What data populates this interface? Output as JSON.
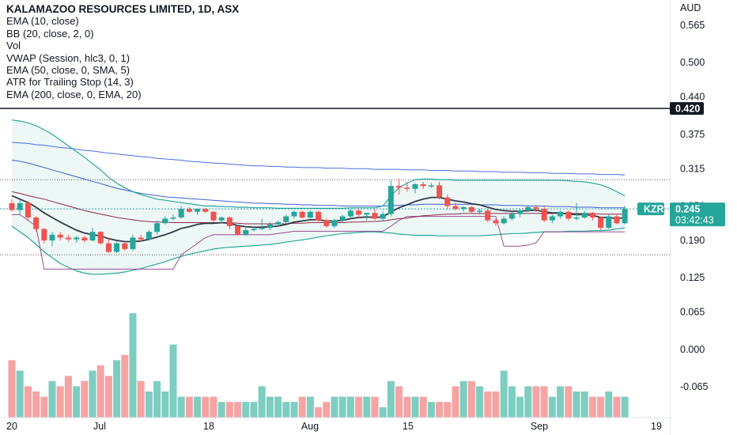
{
  "symbol": {
    "title": "KALAMAZOO RESOURCES LIMITED, 1D, ASX",
    "ticker": "KZR",
    "last_price": "0.245",
    "countdown": "03:42:43",
    "currency": "AUD"
  },
  "indicators": [
    "EMA (10, close)",
    "BB (20, close, 2, 0)",
    "Vol",
    "VWAP (Session, hlc3, 0, 1)",
    "EMA (50, close, 0, SMA, 5)",
    "ATR for Trailing Stop (14, 3)",
    "EMA (200, close, 0, EMA, 20)"
  ],
  "horizontal_line": {
    "price": "0.420",
    "color": "#131722"
  },
  "colors": {
    "up": "#26a69a",
    "down": "#ef5350",
    "bb_band": "#26a69a",
    "bb_fill": "#e6f4f2",
    "ema10": "#363a45",
    "ema50": "#8b2845",
    "ema200": "#3c5fd0",
    "ema200_b": "#4a6fe0",
    "atr_stop": "#9c4d8a",
    "vol_up": "#7dcdc0",
    "vol_down": "#f5a3a3",
    "price_badge": "#26a69a"
  },
  "chart_data": {
    "type": "candlestick",
    "price_axis_ticks": [
      "0.565",
      "0.500",
      "0.440",
      "0.375",
      "0.315",
      "0.250",
      "0.190",
      "0.125",
      "0.065",
      "0.000",
      "-0.065"
    ],
    "x_axis_labels": [
      "20",
      "Jul",
      "18",
      "Aug",
      "15",
      "Sep",
      "19"
    ],
    "candles": [
      {
        "o": 0.255,
        "h": 0.262,
        "l": 0.24,
        "c": 0.243
      },
      {
        "o": 0.243,
        "h": 0.26,
        "l": 0.235,
        "c": 0.255
      },
      {
        "o": 0.255,
        "h": 0.258,
        "l": 0.225,
        "c": 0.23
      },
      {
        "o": 0.23,
        "h": 0.232,
        "l": 0.205,
        "c": 0.21
      },
      {
        "o": 0.21,
        "h": 0.212,
        "l": 0.185,
        "c": 0.19
      },
      {
        "o": 0.19,
        "h": 0.205,
        "l": 0.18,
        "c": 0.2
      },
      {
        "o": 0.2,
        "h": 0.205,
        "l": 0.19,
        "c": 0.195
      },
      {
        "o": 0.195,
        "h": 0.2,
        "l": 0.188,
        "c": 0.192
      },
      {
        "o": 0.192,
        "h": 0.198,
        "l": 0.186,
        "c": 0.195
      },
      {
        "o": 0.195,
        "h": 0.198,
        "l": 0.186,
        "c": 0.19
      },
      {
        "o": 0.19,
        "h": 0.212,
        "l": 0.188,
        "c": 0.205
      },
      {
        "o": 0.205,
        "h": 0.206,
        "l": 0.183,
        "c": 0.185
      },
      {
        "o": 0.185,
        "h": 0.195,
        "l": 0.168,
        "c": 0.17
      },
      {
        "o": 0.17,
        "h": 0.188,
        "l": 0.168,
        "c": 0.185
      },
      {
        "o": 0.185,
        "h": 0.186,
        "l": 0.172,
        "c": 0.175
      },
      {
        "o": 0.175,
        "h": 0.2,
        "l": 0.172,
        "c": 0.195
      },
      {
        "o": 0.195,
        "h": 0.2,
        "l": 0.188,
        "c": 0.192
      },
      {
        "o": 0.192,
        "h": 0.208,
        "l": 0.19,
        "c": 0.205
      },
      {
        "o": 0.205,
        "h": 0.225,
        "l": 0.2,
        "c": 0.22
      },
      {
        "o": 0.22,
        "h": 0.232,
        "l": 0.218,
        "c": 0.228
      },
      {
        "o": 0.228,
        "h": 0.235,
        "l": 0.225,
        "c": 0.23
      },
      {
        "o": 0.23,
        "h": 0.25,
        "l": 0.228,
        "c": 0.245
      },
      {
        "o": 0.245,
        "h": 0.248,
        "l": 0.238,
        "c": 0.24
      },
      {
        "o": 0.24,
        "h": 0.246,
        "l": 0.235,
        "c": 0.245
      },
      {
        "o": 0.245,
        "h": 0.246,
        "l": 0.238,
        "c": 0.24
      },
      {
        "o": 0.24,
        "h": 0.241,
        "l": 0.222,
        "c": 0.225
      },
      {
        "o": 0.225,
        "h": 0.232,
        "l": 0.22,
        "c": 0.23
      },
      {
        "o": 0.23,
        "h": 0.232,
        "l": 0.21,
        "c": 0.215
      },
      {
        "o": 0.215,
        "h": 0.217,
        "l": 0.198,
        "c": 0.2
      },
      {
        "o": 0.2,
        "h": 0.212,
        "l": 0.198,
        "c": 0.208
      },
      {
        "o": 0.208,
        "h": 0.215,
        "l": 0.205,
        "c": 0.21
      },
      {
        "o": 0.21,
        "h": 0.228,
        "l": 0.208,
        "c": 0.212
      },
      {
        "o": 0.212,
        "h": 0.222,
        "l": 0.208,
        "c": 0.218
      },
      {
        "o": 0.218,
        "h": 0.225,
        "l": 0.215,
        "c": 0.222
      },
      {
        "o": 0.222,
        "h": 0.235,
        "l": 0.22,
        "c": 0.232
      },
      {
        "o": 0.232,
        "h": 0.242,
        "l": 0.228,
        "c": 0.24
      },
      {
        "o": 0.24,
        "h": 0.242,
        "l": 0.228,
        "c": 0.23
      },
      {
        "o": 0.23,
        "h": 0.242,
        "l": 0.228,
        "c": 0.24
      },
      {
        "o": 0.24,
        "h": 0.242,
        "l": 0.22,
        "c": 0.225
      },
      {
        "o": 0.225,
        "h": 0.228,
        "l": 0.212,
        "c": 0.215
      },
      {
        "o": 0.215,
        "h": 0.228,
        "l": 0.212,
        "c": 0.225
      },
      {
        "o": 0.225,
        "h": 0.235,
        "l": 0.222,
        "c": 0.232
      },
      {
        "o": 0.232,
        "h": 0.245,
        "l": 0.228,
        "c": 0.242
      },
      {
        "o": 0.242,
        "h": 0.245,
        "l": 0.23,
        "c": 0.235
      },
      {
        "o": 0.235,
        "h": 0.238,
        "l": 0.225,
        "c": 0.238
      },
      {
        "o": 0.238,
        "h": 0.245,
        "l": 0.225,
        "c": 0.228
      },
      {
        "o": 0.228,
        "h": 0.24,
        "l": 0.225,
        "c": 0.236
      },
      {
        "o": 0.236,
        "h": 0.295,
        "l": 0.232,
        "c": 0.285
      },
      {
        "o": 0.285,
        "h": 0.298,
        "l": 0.27,
        "c": 0.282
      },
      {
        "o": 0.282,
        "h": 0.292,
        "l": 0.275,
        "c": 0.28
      },
      {
        "o": 0.28,
        "h": 0.29,
        "l": 0.272,
        "c": 0.288
      },
      {
        "o": 0.288,
        "h": 0.292,
        "l": 0.28,
        "c": 0.285
      },
      {
        "o": 0.285,
        "h": 0.29,
        "l": 0.282,
        "c": 0.286
      },
      {
        "o": 0.286,
        "h": 0.292,
        "l": 0.262,
        "c": 0.265
      },
      {
        "o": 0.265,
        "h": 0.27,
        "l": 0.245,
        "c": 0.25
      },
      {
        "o": 0.25,
        "h": 0.256,
        "l": 0.242,
        "c": 0.245
      },
      {
        "o": 0.245,
        "h": 0.25,
        "l": 0.24,
        "c": 0.248
      },
      {
        "o": 0.248,
        "h": 0.25,
        "l": 0.238,
        "c": 0.24
      },
      {
        "o": 0.24,
        "h": 0.245,
        "l": 0.235,
        "c": 0.242
      },
      {
        "o": 0.242,
        "h": 0.245,
        "l": 0.222,
        "c": 0.225
      },
      {
        "o": 0.225,
        "h": 0.228,
        "l": 0.215,
        "c": 0.22
      },
      {
        "o": 0.22,
        "h": 0.232,
        "l": 0.218,
        "c": 0.228
      },
      {
        "o": 0.228,
        "h": 0.24,
        "l": 0.225,
        "c": 0.236
      },
      {
        "o": 0.236,
        "h": 0.245,
        "l": 0.23,
        "c": 0.242
      },
      {
        "o": 0.242,
        "h": 0.252,
        "l": 0.24,
        "c": 0.248
      },
      {
        "o": 0.248,
        "h": 0.252,
        "l": 0.24,
        "c": 0.245
      },
      {
        "o": 0.245,
        "h": 0.25,
        "l": 0.222,
        "c": 0.225
      },
      {
        "o": 0.225,
        "h": 0.235,
        "l": 0.22,
        "c": 0.232
      },
      {
        "o": 0.232,
        "h": 0.242,
        "l": 0.228,
        "c": 0.24
      },
      {
        "o": 0.24,
        "h": 0.242,
        "l": 0.225,
        "c": 0.228
      },
      {
        "o": 0.228,
        "h": 0.255,
        "l": 0.225,
        "c": 0.23
      },
      {
        "o": 0.23,
        "h": 0.242,
        "l": 0.228,
        "c": 0.238
      },
      {
        "o": 0.238,
        "h": 0.24,
        "l": 0.225,
        "c": 0.23
      },
      {
        "o": 0.23,
        "h": 0.232,
        "l": 0.208,
        "c": 0.212
      },
      {
        "o": 0.212,
        "h": 0.235,
        "l": 0.21,
        "c": 0.232
      },
      {
        "o": 0.232,
        "h": 0.235,
        "l": 0.218,
        "c": 0.22
      },
      {
        "o": 0.22,
        "h": 0.25,
        "l": 0.218,
        "c": 0.245
      }
    ],
    "ema10": [
      0.268,
      0.262,
      0.256,
      0.248,
      0.238,
      0.23,
      0.222,
      0.215,
      0.208,
      0.203,
      0.2,
      0.198,
      0.193,
      0.19,
      0.188,
      0.188,
      0.189,
      0.192,
      0.196,
      0.2,
      0.205,
      0.211,
      0.214,
      0.218,
      0.22,
      0.22,
      0.221,
      0.22,
      0.216,
      0.214,
      0.213,
      0.213,
      0.214,
      0.215,
      0.218,
      0.222,
      0.224,
      0.226,
      0.226,
      0.224,
      0.224,
      0.225,
      0.228,
      0.23,
      0.231,
      0.23,
      0.231,
      0.24,
      0.247,
      0.252,
      0.258,
      0.262,
      0.265,
      0.265,
      0.262,
      0.259,
      0.257,
      0.254,
      0.252,
      0.248,
      0.244,
      0.242,
      0.241,
      0.241,
      0.242,
      0.243,
      0.24,
      0.238,
      0.238,
      0.236,
      0.235,
      0.235,
      0.234,
      0.23,
      0.23,
      0.228,
      0.23
    ],
    "ema50": [
      0.275,
      0.272,
      0.268,
      0.265,
      0.262,
      0.258,
      0.254,
      0.25,
      0.246,
      0.242,
      0.239,
      0.236,
      0.233,
      0.23,
      0.228,
      0.226,
      0.224,
      0.223,
      0.222,
      0.222,
      0.221,
      0.221,
      0.221,
      0.221,
      0.221,
      0.221,
      0.221,
      0.221,
      0.22,
      0.219,
      0.219,
      0.219,
      0.219,
      0.219,
      0.219,
      0.22,
      0.22,
      0.221,
      0.221,
      0.221,
      0.221,
      0.221,
      0.222,
      0.222,
      0.223,
      0.223,
      0.224,
      0.226,
      0.228,
      0.229,
      0.231,
      0.233,
      0.234,
      0.235,
      0.236,
      0.236,
      0.237,
      0.237,
      0.237,
      0.237,
      0.237,
      0.237,
      0.237,
      0.237,
      0.237,
      0.237,
      0.237,
      0.237,
      0.237,
      0.237,
      0.237,
      0.237,
      0.237,
      0.236,
      0.236,
      0.236,
      0.236
    ],
    "ema200_a": [
      0.33,
      0.328,
      0.325,
      0.321,
      0.317,
      0.313,
      0.309,
      0.305,
      0.301,
      0.297,
      0.293,
      0.289,
      0.285,
      0.281,
      0.278,
      0.275,
      0.272,
      0.27,
      0.268,
      0.266,
      0.265,
      0.264,
      0.263,
      0.262,
      0.261,
      0.26,
      0.259,
      0.258,
      0.257,
      0.256,
      0.255,
      0.255,
      0.254,
      0.254,
      0.253,
      0.253,
      0.252,
      0.252,
      0.251,
      0.251,
      0.251,
      0.25,
      0.25,
      0.25,
      0.25,
      0.25,
      0.25,
      0.251,
      0.251,
      0.252,
      0.252,
      0.253,
      0.253,
      0.253,
      0.253,
      0.253,
      0.253,
      0.253,
      0.252,
      0.252,
      0.252,
      0.251,
      0.251,
      0.251,
      0.25,
      0.25,
      0.25,
      0.249,
      0.249,
      0.249,
      0.248,
      0.248,
      0.248,
      0.247,
      0.247,
      0.247,
      0.247
    ],
    "ema200_b": [
      0.361,
      0.36,
      0.359,
      0.357,
      0.356,
      0.354,
      0.352,
      0.351,
      0.349,
      0.347,
      0.346,
      0.344,
      0.342,
      0.341,
      0.339,
      0.338,
      0.336,
      0.335,
      0.333,
      0.332,
      0.331,
      0.33,
      0.328,
      0.327,
      0.326,
      0.325,
      0.324,
      0.323,
      0.322,
      0.321,
      0.32,
      0.32,
      0.319,
      0.319,
      0.318,
      0.318,
      0.317,
      0.317,
      0.317,
      0.316,
      0.316,
      0.316,
      0.315,
      0.315,
      0.315,
      0.314,
      0.314,
      0.314,
      0.314,
      0.313,
      0.313,
      0.313,
      0.312,
      0.312,
      0.312,
      0.311,
      0.311,
      0.311,
      0.31,
      0.31,
      0.31,
      0.309,
      0.309,
      0.309,
      0.308,
      0.308,
      0.308,
      0.307,
      0.307,
      0.307,
      0.306,
      0.306,
      0.306,
      0.305,
      0.305,
      0.305,
      0.304
    ],
    "bb_upper": [
      0.4,
      0.398,
      0.395,
      0.39,
      0.383,
      0.375,
      0.365,
      0.355,
      0.345,
      0.335,
      0.324,
      0.313,
      0.3,
      0.29,
      0.282,
      0.275,
      0.27,
      0.266,
      0.262,
      0.26,
      0.258,
      0.256,
      0.254,
      0.252,
      0.25,
      0.25,
      0.249,
      0.249,
      0.248,
      0.248,
      0.247,
      0.247,
      0.247,
      0.246,
      0.246,
      0.246,
      0.246,
      0.246,
      0.246,
      0.246,
      0.246,
      0.246,
      0.247,
      0.247,
      0.247,
      0.247,
      0.25,
      0.268,
      0.282,
      0.29,
      0.296,
      0.297,
      0.297,
      0.296,
      0.296,
      0.295,
      0.295,
      0.295,
      0.295,
      0.295,
      0.295,
      0.295,
      0.295,
      0.295,
      0.295,
      0.295,
      0.295,
      0.295,
      0.295,
      0.294,
      0.293,
      0.292,
      0.29,
      0.287,
      0.282,
      0.275,
      0.268
    ],
    "bb_lower": [
      0.215,
      0.205,
      0.195,
      0.183,
      0.17,
      0.16,
      0.15,
      0.143,
      0.137,
      0.133,
      0.131,
      0.131,
      0.132,
      0.133,
      0.135,
      0.138,
      0.141,
      0.145,
      0.149,
      0.153,
      0.158,
      0.162,
      0.166,
      0.169,
      0.172,
      0.175,
      0.177,
      0.178,
      0.179,
      0.18,
      0.181,
      0.182,
      0.183,
      0.185,
      0.187,
      0.189,
      0.191,
      0.193,
      0.196,
      0.198,
      0.2,
      0.202,
      0.203,
      0.204,
      0.205,
      0.205,
      0.204,
      0.203,
      0.201,
      0.2,
      0.199,
      0.199,
      0.199,
      0.198,
      0.198,
      0.198,
      0.198,
      0.198,
      0.198,
      0.199,
      0.2,
      0.201,
      0.202,
      0.202,
      0.203,
      0.204,
      0.205,
      0.205,
      0.205,
      0.206,
      0.206,
      0.206,
      0.207,
      0.207,
      0.208,
      0.21,
      0.212
    ],
    "atr_stop": [
      0.235,
      0.235,
      0.225,
      0.215,
      0.14,
      0.14,
      0.14,
      0.14,
      0.14,
      0.14,
      0.14,
      0.14,
      0.14,
      0.14,
      0.14,
      0.14,
      0.14,
      0.14,
      0.14,
      0.14,
      0.14,
      0.165,
      0.175,
      0.185,
      0.195,
      0.2,
      0.2,
      0.2,
      0.2,
      0.2,
      0.2,
      0.2,
      0.2,
      0.202,
      0.204,
      0.206,
      0.206,
      0.206,
      0.206,
      0.206,
      0.206,
      0.206,
      0.206,
      0.206,
      0.206,
      0.206,
      0.206,
      0.215,
      0.225,
      0.232,
      0.232,
      0.232,
      0.232,
      0.232,
      0.232,
      0.232,
      0.232,
      0.232,
      0.232,
      0.232,
      0.232,
      0.18,
      0.18,
      0.18,
      0.182,
      0.186,
      0.205,
      0.205,
      0.205,
      0.205,
      0.205,
      0.205,
      0.205,
      0.205,
      0.205,
      0.205,
      0.205
    ],
    "volume": [
      0.55,
      0.45,
      0.3,
      0.25,
      0.2,
      0.35,
      0.3,
      0.4,
      0.3,
      0.35,
      0.45,
      0.5,
      0.4,
      0.55,
      0.6,
      1.0,
      0.35,
      0.25,
      0.35,
      0.25,
      0.7,
      0.2,
      0.2,
      0.2,
      0.2,
      0.2,
      0.15,
      0.15,
      0.15,
      0.15,
      0.15,
      0.3,
      0.2,
      0.2,
      0.15,
      0.15,
      0.2,
      0.2,
      0.1,
      0.15,
      0.2,
      0.2,
      0.2,
      0.2,
      0.2,
      0.2,
      0.1,
      0.35,
      0.3,
      0.2,
      0.2,
      0.2,
      0.15,
      0.15,
      0.15,
      0.3,
      0.35,
      0.35,
      0.3,
      0.25,
      0.25,
      0.45,
      0.3,
      0.2,
      0.3,
      0.3,
      0.3,
      0.2,
      0.3,
      0.3,
      0.25,
      0.25,
      0.2,
      0.2,
      0.25,
      0.2,
      0.2
    ],
    "volume_axis_ticks": [
      "0.065",
      "0.000",
      "-0.065"
    ]
  }
}
